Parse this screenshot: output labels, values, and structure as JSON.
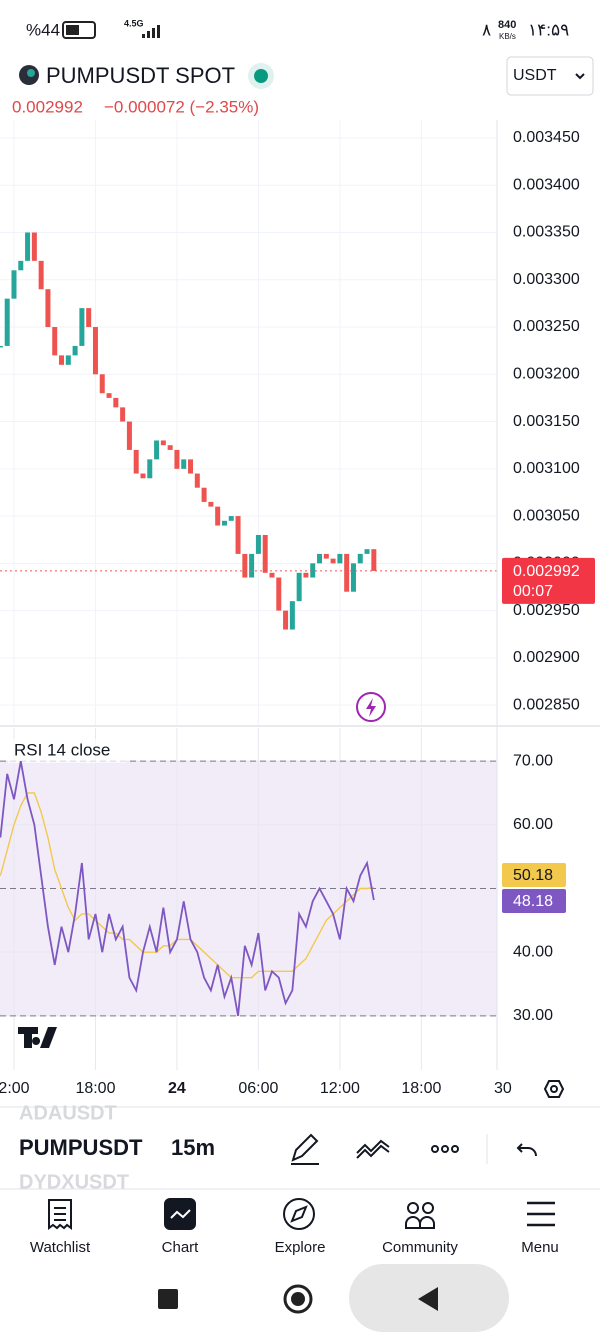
{
  "status_bar": {
    "battery": "%44",
    "network": "4.5G",
    "speed": "840",
    "speed_unit": "KB/s",
    "notifications": "۸",
    "time": "۱۴:۵۹"
  },
  "header": {
    "symbol": "PUMPUSDT SPOT",
    "price": "0.002992",
    "change": "−0.000072 (−2.35%)",
    "currency": "USDT"
  },
  "chart_data": [
    {
      "type": "candlestick",
      "x": [
        11,
        11.5,
        12,
        12.5,
        13,
        13.5,
        14,
        14.5,
        15,
        15.5,
        16,
        16.5,
        17,
        17.5,
        18,
        18.5,
        19,
        19.5,
        20,
        20.5,
        21,
        21.5,
        22,
        22.5,
        23,
        23.5,
        24,
        24.5,
        25,
        25.5,
        26,
        26.5,
        27,
        27.5,
        28,
        28.5,
        29,
        29.5,
        30,
        30.5,
        31,
        31.5,
        32,
        32.5,
        33,
        33.5,
        34,
        34.5,
        35,
        35.5,
        36,
        36.5,
        37,
        37.5,
        38,
        38.5
      ],
      "close": [
        0.00323,
        0.00328,
        0.00331,
        0.00332,
        0.00335,
        0.00332,
        0.00329,
        0.00325,
        0.00322,
        0.00321,
        0.00322,
        0.00323,
        0.00327,
        0.00325,
        0.0032,
        0.00318,
        0.003175,
        0.003165,
        0.00315,
        0.00312,
        0.003095,
        0.00309,
        0.00311,
        0.00313,
        0.003125,
        0.00312,
        0.0031,
        0.00311,
        0.003095,
        0.00308,
        0.003065,
        0.00306,
        0.00304,
        0.003045,
        0.00305,
        0.00301,
        0.002985,
        0.00301,
        0.00303,
        0.00299,
        0.002985,
        0.00295,
        0.00293,
        0.00296,
        0.00299,
        0.002985,
        0.003,
        0.00301,
        0.003005,
        0.003,
        0.00301,
        0.00297,
        0.003,
        0.00301,
        0.003015,
        0.002992
      ],
      "up_color": "#26a69a",
      "down_color": "#ef5350",
      "last_price": 0.002992,
      "countdown": "00:07",
      "xlim": [
        10.97,
        47.57
      ],
      "ylim": [
        0.002829,
        0.003469
      ],
      "yticks": [
        {
          "value": 0.00345,
          "label": "0.003450"
        },
        {
          "value": 0.0034,
          "label": "0.003400"
        },
        {
          "value": 0.00335,
          "label": "0.003350"
        },
        {
          "value": 0.0033,
          "label": "0.003300"
        },
        {
          "value": 0.00325,
          "label": "0.003250"
        },
        {
          "value": 0.0032,
          "label": "0.003200"
        },
        {
          "value": 0.00315,
          "label": "0.003150"
        },
        {
          "value": 0.0031,
          "label": "0.003100"
        },
        {
          "value": 0.00305,
          "label": "0.003050"
        },
        {
          "value": 0.003,
          "label": "0.003000"
        },
        {
          "value": 0.00295,
          "label": "0.002950"
        },
        {
          "value": 0.0029,
          "label": "0.002900"
        },
        {
          "value": 0.00285,
          "label": "0.002850"
        }
      ],
      "grid": true
    },
    {
      "type": "line",
      "title": "RSI 14 close",
      "x": [
        11,
        11.5,
        12,
        12.5,
        13,
        13.5,
        14,
        14.5,
        15,
        15.5,
        16,
        16.5,
        17,
        17.5,
        18,
        18.5,
        19,
        19.5,
        20,
        20.5,
        21,
        21.5,
        22,
        22.5,
        23,
        23.5,
        24,
        24.5,
        25,
        25.5,
        26,
        26.5,
        27,
        27.5,
        28,
        28.5,
        29,
        29.5,
        30,
        30.5,
        31,
        31.5,
        32,
        32.5,
        33,
        33.5,
        34,
        34.5,
        35,
        35.5,
        36,
        36.5,
        37,
        37.5,
        38,
        38.5
      ],
      "series": [
        {
          "color": "#7e57c2",
          "values": [
            58,
            68,
            64,
            70,
            64,
            60,
            52,
            44,
            38,
            44,
            40,
            46,
            54,
            42,
            46,
            40,
            46,
            42,
            44,
            36,
            34,
            40,
            44,
            40,
            47,
            40,
            42,
            48,
            42,
            40,
            36,
            34,
            38,
            33,
            36,
            30,
            41,
            38,
            43,
            34,
            37,
            36,
            32,
            34,
            46,
            44,
            48,
            50,
            48,
            46,
            42,
            50,
            48,
            52,
            54,
            48.18
          ]
        },
        {
          "color": "#f2c94c",
          "values": [
            52,
            56,
            60,
            63,
            65,
            65,
            62,
            58,
            53,
            50,
            47,
            45,
            46,
            46,
            45,
            44,
            43,
            43,
            42,
            42,
            41,
            40,
            40,
            40,
            41,
            41,
            42,
            42,
            42,
            41,
            40,
            39,
            38,
            37,
            36,
            36,
            36,
            36,
            37,
            37,
            37,
            37,
            37,
            37,
            38,
            39,
            41,
            43,
            45,
            46,
            47,
            48,
            49,
            50,
            50,
            50.18
          ]
        }
      ],
      "band": [
        30,
        70
      ],
      "midline": 50,
      "xlim": [
        10.97,
        47.57
      ],
      "ylim": [
        21.5,
        75.2
      ],
      "yticks": [
        {
          "value": 70,
          "label": "70.00"
        },
        {
          "value": 60,
          "label": "60.00"
        },
        {
          "value": 40,
          "label": "40.00"
        },
        {
          "value": 30,
          "label": "30.00"
        }
      ],
      "xticks": [
        {
          "value": 12,
          "label": "2:00"
        },
        {
          "value": 18,
          "label": "18:00"
        },
        24,
        {
          "value": 30,
          "label": "06:00"
        },
        {
          "value": 36,
          "label": "12:00"
        },
        {
          "value": 42,
          "label": "18:00"
        },
        {
          "value": 48,
          "label": "30"
        }
      ]
    }
  ],
  "toolbar": {
    "prev_symbol": "ADAUSDT",
    "symbol": "PUMPUSDT",
    "interval": "15m",
    "next_symbol": "DYDXUSDT"
  },
  "nav": [
    "Watchlist",
    "Chart",
    "Explore",
    "Community",
    "Menu"
  ]
}
